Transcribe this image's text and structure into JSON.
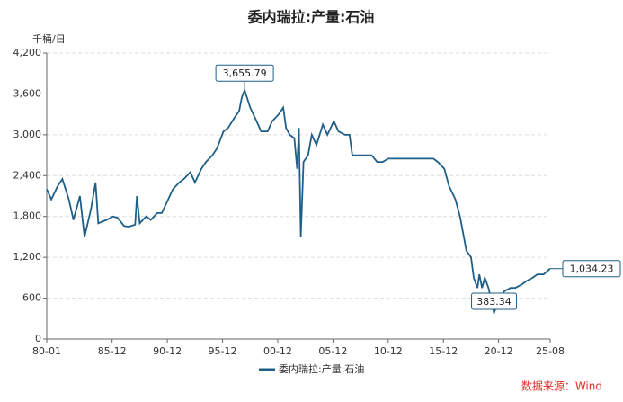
{
  "chart_data": {
    "type": "line",
    "title": "委内瑞拉:产量:石油",
    "y_unit": "千桶/日",
    "source": "数据来源：Wind",
    "xlim": [
      "80-01",
      "25-08"
    ],
    "xticks": [
      "80-01",
      "85-12",
      "90-12",
      "95-12",
      "00-12",
      "05-12",
      "10-12",
      "15-12",
      "20-12",
      "25-08"
    ],
    "ylim": [
      0,
      4200
    ],
    "yticks": [
      0,
      {
        "value": 600,
        "label": "600"
      },
      {
        "value": 1200,
        "label": "1,200"
      },
      {
        "value": 1800,
        "label": "1,800"
      },
      {
        "value": 2400,
        "label": "2,400"
      },
      {
        "value": 3000,
        "label": "3,000"
      },
      {
        "value": 3600,
        "label": "3,600"
      },
      {
        "value": 4200,
        "label": "4,200"
      }
    ],
    "grid": true,
    "x": [
      "80-01",
      "80-06",
      "81-01",
      "81-06",
      "82-01",
      "82-06",
      "83-01",
      "83-06",
      "84-01",
      "84-06",
      "84-09",
      "85-06",
      "86-01",
      "86-06",
      "87-01",
      "87-06",
      "88-01",
      "88-03",
      "88-06",
      "89-01",
      "89-06",
      "90-01",
      "90-06",
      "91-01",
      "91-06",
      "92-01",
      "92-06",
      "93-01",
      "93-06",
      "94-01",
      "94-06",
      "95-01",
      "95-06",
      "96-01",
      "96-06",
      "97-01",
      "97-06",
      "97-09",
      "97-12",
      "98-06",
      "99-01",
      "99-06",
      "00-01",
      "00-06",
      "01-01",
      "01-06",
      "01-09",
      "02-01",
      "02-06",
      "02-09",
      "02-11",
      "03-01",
      "03-04",
      "03-09",
      "04-01",
      "04-06",
      "05-01",
      "05-06",
      "06-01",
      "06-06",
      "07-01",
      "07-06",
      "07-09",
      "09-06",
      "09-12",
      "10-06",
      "10-12",
      "15-01",
      "15-06",
      "16-01",
      "16-06",
      "17-01",
      "17-06",
      "18-01",
      "18-06",
      "18-09",
      "19-01",
      "19-03",
      "19-06",
      "19-09",
      "20-01",
      "20-07",
      "20-10",
      "21-01",
      "21-06",
      "22-01",
      "22-06",
      "23-01",
      "23-06",
      "24-01",
      "24-06",
      "25-01",
      "25-08"
    ],
    "series": [
      {
        "name": "委内瑞拉:产量:石油",
        "color": "#1f5f87",
        "values": [
          2200,
          2050,
          2250,
          2350,
          2050,
          1750,
          2100,
          1500,
          1900,
          2300,
          1700,
          1750,
          1800,
          1780,
          1660,
          1650,
          1680,
          2100,
          1700,
          1800,
          1750,
          1850,
          1850,
          2050,
          2200,
          2300,
          2350,
          2450,
          2300,
          2500,
          2600,
          2700,
          2800,
          3050,
          3100,
          3250,
          3350,
          3550,
          3655.79,
          3400,
          3200,
          3050,
          3050,
          3200,
          3300,
          3400,
          3100,
          3000,
          2950,
          2500,
          3100,
          1500,
          2600,
          2700,
          3000,
          2850,
          3150,
          3000,
          3200,
          3050,
          3000,
          3000,
          2700,
          2700,
          2600,
          2600,
          2650,
          2650,
          2600,
          2500,
          2250,
          2050,
          1800,
          1300,
          1200,
          900,
          750,
          950,
          750,
          900,
          750,
          383.34,
          500,
          600,
          700,
          750,
          750,
          800,
          850,
          900,
          950,
          950,
          1034.23
        ],
        "value_labels": [
          null,
          null,
          null,
          null,
          null,
          null,
          null,
          null,
          null,
          null,
          null,
          null,
          null,
          null,
          null,
          null,
          null,
          null,
          null,
          null,
          null,
          null,
          null,
          null,
          null,
          null,
          null,
          null,
          null,
          null,
          null,
          null,
          null,
          null,
          null,
          null,
          null,
          null,
          "3,655.79",
          null,
          null,
          null,
          null,
          null,
          null,
          null,
          null,
          null,
          null,
          null,
          null,
          null,
          null,
          null,
          null,
          null,
          null,
          null,
          null,
          null,
          null,
          null,
          null,
          null,
          null,
          null,
          null,
          null,
          null,
          null,
          null,
          null,
          null,
          null,
          null,
          null,
          null,
          null,
          null,
          null,
          null,
          "383.34",
          null,
          null,
          null,
          null,
          null,
          null,
          null,
          null,
          null,
          null,
          "1,034.23"
        ]
      }
    ]
  }
}
